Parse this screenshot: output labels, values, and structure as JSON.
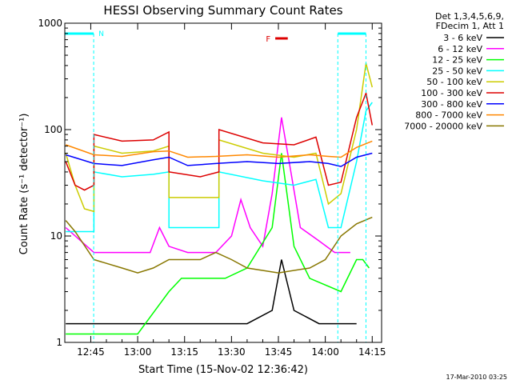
{
  "chart_data": {
    "type": "line",
    "title": "HESSI Observing Summary Count Rates",
    "xlabel": "Start Time (15-Nov-02 12:36:42)",
    "ylabel": "Count Rate (s⁻¹ detector⁻¹)",
    "yscale": "log",
    "ylim": [
      1,
      1000
    ],
    "xlim": [
      "12:36:42",
      "14:18:00"
    ],
    "xticks": [
      "12:45",
      "13:00",
      "13:15",
      "13:30",
      "13:45",
      "14:00",
      "14:15"
    ],
    "yticks": [
      "1",
      "10",
      "100",
      "1000"
    ],
    "legend_header": [
      "Det 1,3,4,5,6,9,",
      "FDecim 1, Att 1"
    ],
    "legend_position": "top-right outside",
    "series": [
      {
        "name": "3 - 6 keV",
        "color": "#000000",
        "t": [
          "12:37",
          "12:46",
          "12:55",
          "13:05",
          "13:15",
          "13:25",
          "13:35",
          "13:43",
          "13:46",
          "13:50",
          "13:58",
          "14:05",
          "14:10"
        ],
        "values": [
          1.5,
          1.5,
          1.5,
          1.5,
          1.5,
          1.5,
          1.5,
          2,
          6,
          2,
          1.5,
          1.5,
          1.5
        ]
      },
      {
        "name": "6 - 12 keV",
        "color": "#ff00ff",
        "t": [
          "12:37",
          "12:46",
          "12:55",
          "13:04",
          "13:07",
          "13:10",
          "13:16",
          "13:25",
          "13:30",
          "13:33",
          "13:36",
          "13:40",
          "13:43",
          "13:46",
          "13:49",
          "13:52",
          "13:58",
          "14:03",
          "14:08"
        ],
        "values": [
          12,
          7,
          7,
          7,
          12,
          8,
          7,
          7,
          10,
          22,
          12,
          8,
          25,
          130,
          40,
          12,
          9,
          7,
          7
        ]
      },
      {
        "name": "12 - 25 keV",
        "color": "#00ff00",
        "t": [
          "12:37",
          "12:46",
          "13:00",
          "13:10",
          "13:14",
          "13:20",
          "13:28",
          "13:35",
          "13:43",
          "13:46",
          "13:50",
          "13:55",
          "14:05",
          "14:10",
          "14:12",
          "14:14"
        ],
        "values": [
          1.2,
          1.2,
          1.2,
          3,
          4,
          4,
          4,
          5,
          12,
          60,
          8,
          4,
          3,
          6,
          6,
          5
        ]
      },
      {
        "name": "25 - 50 keV",
        "color": "#00ffff",
        "t": [
          "12:37",
          "12:43",
          "12:46",
          "12:46",
          "12:55",
          "13:05",
          "13:10",
          "13:10",
          "13:20",
          "13:26",
          "13:26",
          "13:40",
          "13:50",
          "13:57",
          "14:01",
          "14:05",
          "14:10",
          "14:13",
          "14:15"
        ],
        "values": [
          11,
          11,
          11,
          40,
          36,
          38,
          40,
          12,
          12,
          12,
          40,
          33,
          30,
          34,
          12,
          12,
          50,
          150,
          180
        ]
      },
      {
        "name": "50 - 100 keV",
        "color": "#cccc00",
        "t": [
          "12:37",
          "12:40",
          "12:43",
          "12:46",
          "12:46",
          "12:55",
          "13:05",
          "13:10",
          "13:10",
          "13:20",
          "13:26",
          "13:26",
          "13:40",
          "13:50",
          "13:57",
          "14:01",
          "14:05",
          "14:10",
          "14:13",
          "14:15"
        ],
        "values": [
          60,
          30,
          18,
          17,
          70,
          60,
          63,
          70,
          23,
          23,
          23,
          80,
          60,
          55,
          60,
          20,
          25,
          100,
          420,
          250
        ]
      },
      {
        "name": "100 - 300 keV",
        "color": "#dd0000",
        "t": [
          "12:37",
          "12:40",
          "12:43",
          "12:46",
          "12:46",
          "12:55",
          "13:05",
          "13:10",
          "13:10",
          "13:20",
          "13:26",
          "13:26",
          "13:40",
          "13:50",
          "13:57",
          "14:01",
          "14:05",
          "14:10",
          "14:13",
          "14:15"
        ],
        "values": [
          50,
          30,
          27,
          30,
          90,
          78,
          80,
          95,
          40,
          36,
          40,
          100,
          75,
          72,
          85,
          30,
          32,
          130,
          220,
          110
        ]
      },
      {
        "name": "300 - 800 keV",
        "color": "#0000ff",
        "t": [
          "12:37",
          "12:46",
          "12:55",
          "13:05",
          "13:10",
          "13:16",
          "13:25",
          "13:35",
          "13:45",
          "13:55",
          "14:01",
          "14:05",
          "14:10",
          "14:15"
        ],
        "values": [
          58,
          48,
          46,
          52,
          55,
          46,
          48,
          50,
          48,
          50,
          48,
          45,
          55,
          60
        ]
      },
      {
        "name": "800 - 7000 keV",
        "color": "#ff8800",
        "t": [
          "12:37",
          "12:46",
          "12:55",
          "13:05",
          "13:10",
          "13:16",
          "13:25",
          "13:35",
          "13:45",
          "13:55",
          "14:01",
          "14:05",
          "14:10",
          "14:15"
        ],
        "values": [
          72,
          58,
          56,
          62,
          63,
          55,
          56,
          58,
          55,
          58,
          56,
          55,
          68,
          78
        ]
      },
      {
        "name": "7000 - 20000 keV",
        "color": "#887700",
        "t": [
          "12:37",
          "12:40",
          "12:46",
          "12:55",
          "13:00",
          "13:05",
          "13:10",
          "13:20",
          "13:25",
          "13:30",
          "13:35",
          "13:45",
          "13:55",
          "14:00",
          "14:05",
          "14:10",
          "14:15"
        ],
        "values": [
          14,
          11,
          6,
          5,
          4.5,
          5,
          6,
          6,
          7,
          6,
          5,
          4.5,
          5,
          6,
          10,
          13,
          15
        ]
      }
    ],
    "markers": [
      {
        "type": "night",
        "color": "#00ffff",
        "ranges": [
          [
            "12:36:42",
            "12:45:56"
          ],
          [
            "14:04:00",
            "14:13:00"
          ]
        ]
      },
      {
        "type": "flare",
        "label": "F",
        "color": "#dd0000",
        "range": [
          "13:44:00",
          "13:48:00"
        ]
      },
      {
        "type": "saa",
        "label": "N",
        "color": "#00ffff",
        "at": "12:46:30"
      }
    ]
  },
  "footer": {
    "timestamp": "17-Mar-2010 03:25"
  }
}
